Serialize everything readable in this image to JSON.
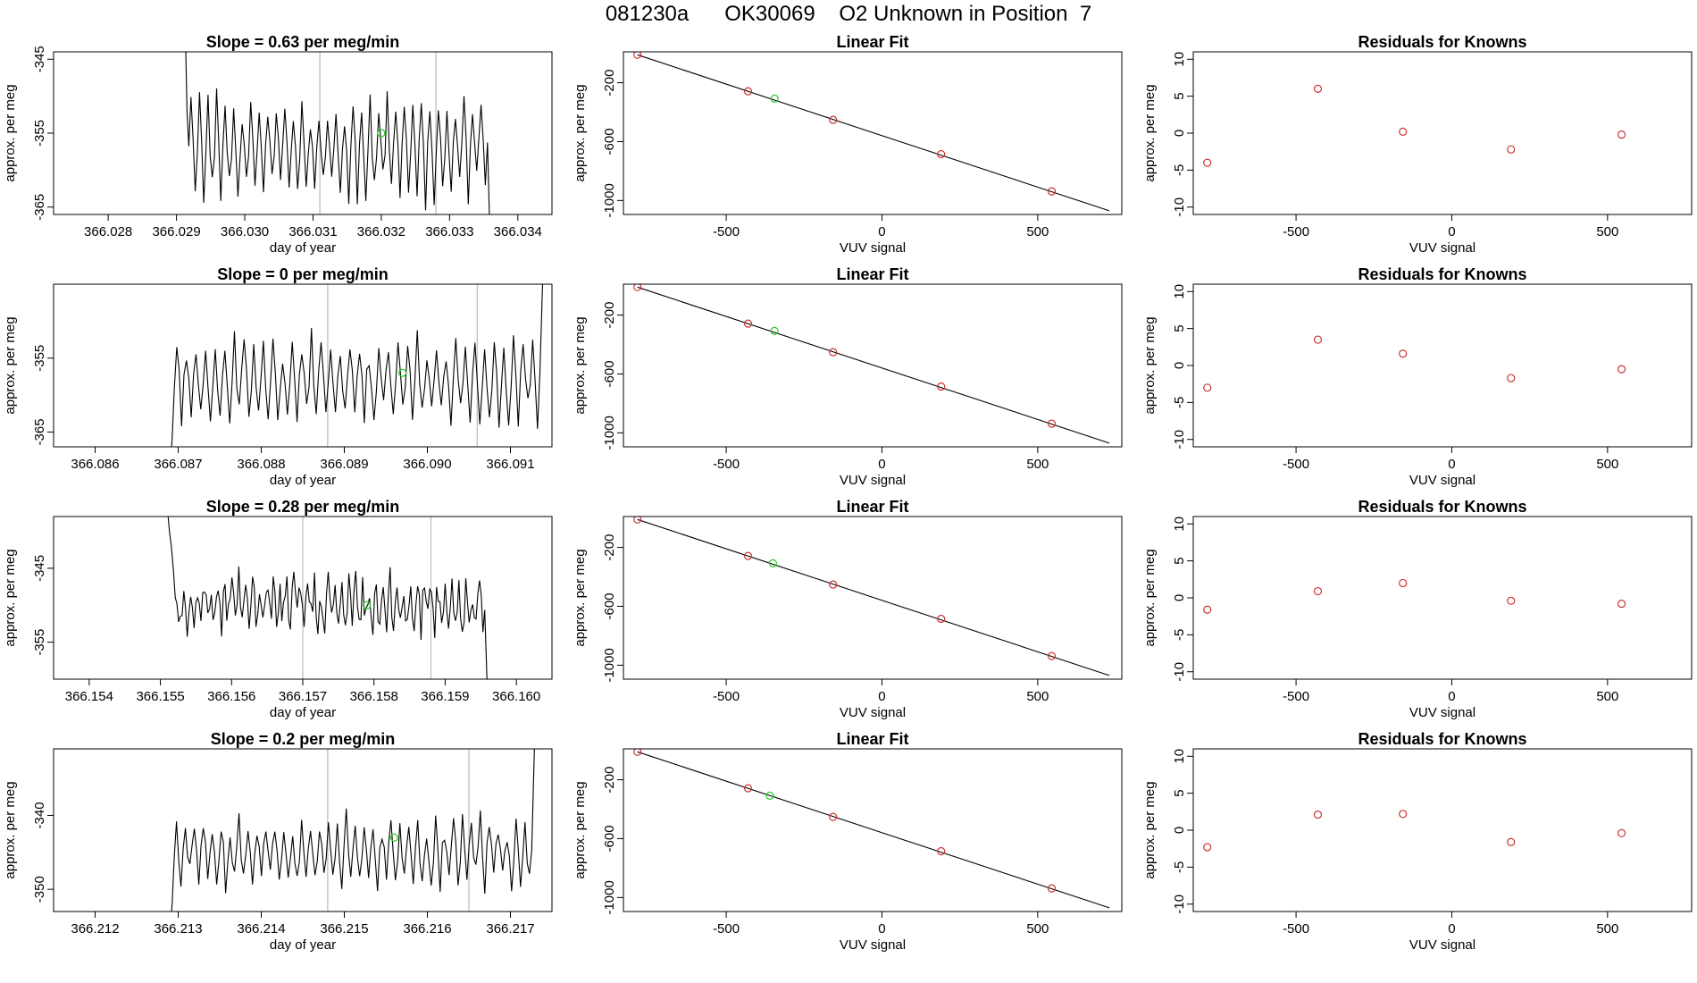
{
  "main_title": "081230a      OK30069    O2 Unknown in Position  7",
  "colors": {
    "line": "#000000",
    "known_point": "#cc3333",
    "unknown_point": "#22cc22",
    "vline": "#bbbbbb"
  },
  "chart_data": [
    {
      "type": "line",
      "row": 0,
      "col": 0,
      "title": "Slope =  0.63  per meg/min",
      "xlabel": "day of year",
      "ylabel": "approx. per meg",
      "xlim": [
        366.0272,
        366.0345
      ],
      "ylim": [
        -366,
        -344
      ],
      "xticks": [
        "366.028",
        "366.029",
        "366.030",
        "366.031",
        "366.032",
        "366.033",
        "366.034"
      ],
      "yticks": [
        "-345",
        "-355",
        "-365"
      ],
      "trace": {
        "x_start": 366.0291,
        "x_end": 366.0336,
        "center": -357,
        "amplitude": 6,
        "cycles": 35,
        "noise": 1.5,
        "head": [
          -338,
          -340,
          -352
        ],
        "tail_to": -372
      },
      "vlines": [
        366.0311,
        366.0328
      ],
      "unknown_point": {
        "x": 366.032,
        "y": -355
      }
    },
    {
      "type": "line",
      "row": 1,
      "col": 0,
      "title": "Slope =  0  per meg/min",
      "xlabel": "day of year",
      "ylabel": "approx. per meg",
      "xlim": [
        366.0855,
        366.0915
      ],
      "ylim": [
        -367,
        -345
      ],
      "xticks": [
        "366.086",
        "366.087",
        "366.088",
        "366.089",
        "366.090",
        "366.091"
      ],
      "yticks": [
        "-355",
        "-365"
      ],
      "trace": {
        "x_start": 366.0869,
        "x_end": 366.0914,
        "center": -358,
        "amplitude": 5,
        "cycles": 38,
        "noise": 1.5,
        "head": [
          -370,
          -366
        ],
        "tail_to": -340
      },
      "vlines": [
        366.0888,
        366.0906
      ],
      "unknown_point": {
        "x": 366.0897,
        "y": -357
      }
    },
    {
      "type": "line",
      "row": 2,
      "col": 0,
      "title": "Slope =  0.28  per meg/min",
      "xlabel": "day of year",
      "ylabel": "approx. per meg",
      "xlim": [
        366.1535,
        366.1605
      ],
      "ylim": [
        -360,
        -338
      ],
      "xticks": [
        "366.154",
        "366.155",
        "366.156",
        "366.157",
        "366.158",
        "366.159",
        "366.160"
      ],
      "yticks": [
        "-345",
        "-355"
      ],
      "trace": {
        "x_start": 366.1551,
        "x_end": 366.1596,
        "center": -350,
        "amplitude": 2.5,
        "cycles": 45,
        "noise": 2.5,
        "head": [
          -337,
          -340,
          -342,
          -345
        ],
        "tail_to": -364
      },
      "vlines": [
        366.157,
        366.1588
      ],
      "unknown_point": {
        "x": 366.1579,
        "y": -350
      }
    },
    {
      "type": "line",
      "row": 3,
      "col": 0,
      "title": "Slope =  0.2  per meg/min",
      "xlabel": "day of year",
      "ylabel": "approx. per meg",
      "xlim": [
        366.2115,
        366.2175
      ],
      "ylim": [
        -353,
        -331
      ],
      "xticks": [
        "366.212",
        "366.213",
        "366.214",
        "366.215",
        "366.216",
        "366.217"
      ],
      "yticks": [
        "-340",
        "-350"
      ],
      "trace": {
        "x_start": 366.2129,
        "x_end": 366.2173,
        "center": -345,
        "amplitude": 4,
        "cycles": 40,
        "noise": 1.5,
        "head": [
          -356,
          -352
        ],
        "tail_to": -326
      },
      "vlines": [
        366.2148,
        366.2165
      ],
      "unknown_point": {
        "x": 366.2156,
        "y": -343
      }
    },
    {
      "type": "scatter",
      "row": 0,
      "col": 1,
      "title": "Linear Fit",
      "xlabel": "VUV signal",
      "ylabel": "approx. per meg",
      "xlim": [
        -830,
        770
      ],
      "ylim": [
        -1095,
        10
      ],
      "xticks": [
        "-500",
        "0",
        "500"
      ],
      "yticks": [
        "-200",
        "-600",
        "-1000"
      ],
      "fit_line": [
        [
          -785,
          -10
        ],
        [
          730,
          -1070
        ]
      ],
      "known_points": [
        [
          -785,
          -10
        ],
        [
          -430,
          -258
        ],
        [
          -157,
          -452
        ],
        [
          190,
          -685
        ],
        [
          545,
          -938
        ]
      ],
      "unknown_point": [
        -345,
        -308
      ]
    },
    {
      "type": "scatter",
      "row": 1,
      "col": 1,
      "title": "Linear Fit",
      "xlabel": "VUV signal",
      "ylabel": "approx. per meg",
      "xlim": [
        -830,
        770
      ],
      "ylim": [
        -1095,
        10
      ],
      "xticks": [
        "-500",
        "0",
        "500"
      ],
      "yticks": [
        "-200",
        "-600",
        "-1000"
      ],
      "fit_line": [
        [
          -785,
          -10
        ],
        [
          730,
          -1070
        ]
      ],
      "known_points": [
        [
          -785,
          -10
        ],
        [
          -430,
          -258
        ],
        [
          -157,
          -452
        ],
        [
          190,
          -685
        ],
        [
          545,
          -938
        ]
      ],
      "unknown_point": [
        -345,
        -308
      ]
    },
    {
      "type": "scatter",
      "row": 2,
      "col": 1,
      "title": "Linear Fit",
      "xlabel": "VUV signal",
      "ylabel": "approx. per meg",
      "xlim": [
        -830,
        770
      ],
      "ylim": [
        -1095,
        10
      ],
      "xticks": [
        "-500",
        "0",
        "500"
      ],
      "yticks": [
        "-200",
        "-600",
        "-1000"
      ],
      "fit_line": [
        [
          -785,
          -10
        ],
        [
          730,
          -1070
        ]
      ],
      "known_points": [
        [
          -785,
          -10
        ],
        [
          -430,
          -258
        ],
        [
          -157,
          -452
        ],
        [
          190,
          -685
        ],
        [
          545,
          -938
        ]
      ],
      "unknown_point": [
        -350,
        -308
      ]
    },
    {
      "type": "scatter",
      "row": 3,
      "col": 1,
      "title": "Linear Fit",
      "xlabel": "VUV signal",
      "ylabel": "approx. per meg",
      "xlim": [
        -830,
        770
      ],
      "ylim": [
        -1095,
        10
      ],
      "xticks": [
        "-500",
        "0",
        "500"
      ],
      "yticks": [
        "-200",
        "-600",
        "-1000"
      ],
      "fit_line": [
        [
          -785,
          -10
        ],
        [
          730,
          -1070
        ]
      ],
      "known_points": [
        [
          -785,
          -10
        ],
        [
          -430,
          -258
        ],
        [
          -157,
          -452
        ],
        [
          190,
          -685
        ],
        [
          545,
          -938
        ]
      ],
      "unknown_point": [
        -360,
        -308
      ]
    },
    {
      "type": "scatter",
      "row": 0,
      "col": 2,
      "title": "Residuals for Knowns",
      "xlabel": "VUV signal",
      "ylabel": "approx. per meg",
      "xlim": [
        -830,
        770
      ],
      "ylim": [
        -11,
        11
      ],
      "xticks": [
        "-500",
        "0",
        "500"
      ],
      "yticks": [
        "10",
        "5",
        "0",
        "-5",
        "-10"
      ],
      "known_points": [
        [
          -785,
          -4
        ],
        [
          -430,
          6
        ],
        [
          -157,
          0.2
        ],
        [
          190,
          -2.2
        ],
        [
          545,
          -0.2
        ]
      ]
    },
    {
      "type": "scatter",
      "row": 1,
      "col": 2,
      "title": "Residuals for Knowns",
      "xlabel": "VUV signal",
      "ylabel": "approx. per meg",
      "xlim": [
        -830,
        770
      ],
      "ylim": [
        -11,
        11
      ],
      "xticks": [
        "-500",
        "0",
        "500"
      ],
      "yticks": [
        "10",
        "5",
        "0",
        "-5",
        "-10"
      ],
      "known_points": [
        [
          -785,
          -3
        ],
        [
          -430,
          3.5
        ],
        [
          -157,
          1.6
        ],
        [
          190,
          -1.7
        ],
        [
          545,
          -0.5
        ]
      ]
    },
    {
      "type": "scatter",
      "row": 2,
      "col": 2,
      "title": "Residuals for Knowns",
      "xlabel": "VUV signal",
      "ylabel": "approx. per meg",
      "xlim": [
        -830,
        770
      ],
      "ylim": [
        -11,
        11
      ],
      "xticks": [
        "-500",
        "0",
        "500"
      ],
      "yticks": [
        "10",
        "5",
        "0",
        "-5",
        "-10"
      ],
      "known_points": [
        [
          -785,
          -1.6
        ],
        [
          -430,
          0.9
        ],
        [
          -157,
          2
        ],
        [
          190,
          -0.4
        ],
        [
          545,
          -0.8
        ]
      ]
    },
    {
      "type": "scatter",
      "row": 3,
      "col": 2,
      "title": "Residuals for Knowns",
      "xlabel": "VUV signal",
      "ylabel": "approx. per meg",
      "xlim": [
        -830,
        770
      ],
      "ylim": [
        -11,
        11
      ],
      "xticks": [
        "-500",
        "0",
        "500"
      ],
      "yticks": [
        "10",
        "5",
        "0",
        "-5",
        "-10"
      ],
      "known_points": [
        [
          -785,
          -2.3
        ],
        [
          -430,
          2.1
        ],
        [
          -157,
          2.2
        ],
        [
          190,
          -1.6
        ],
        [
          545,
          -0.4
        ]
      ]
    }
  ]
}
